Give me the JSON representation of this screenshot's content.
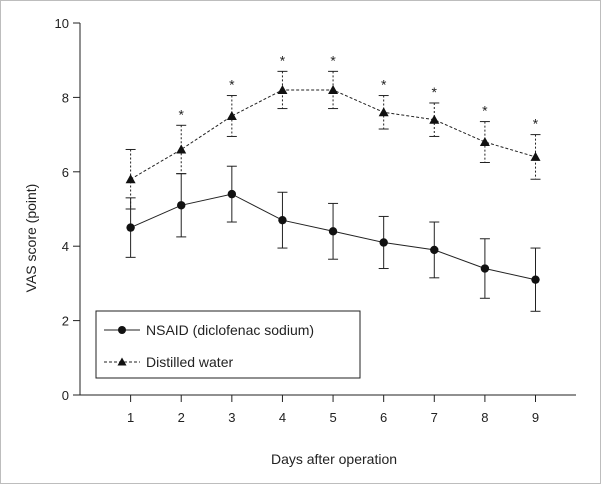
{
  "chart_data": {
    "type": "line",
    "title": "",
    "xlabel": "Days after operation",
    "ylabel": "VAS score (point)",
    "x": [
      1,
      2,
      3,
      4,
      5,
      6,
      7,
      8,
      9
    ],
    "x_tick_labels": [
      "1",
      "2",
      "3",
      "4",
      "5",
      "6",
      "7",
      "8",
      "9"
    ],
    "xlim": [
      0,
      9.8
    ],
    "ylim": [
      0,
      10
    ],
    "y_ticks": [
      0,
      2,
      4,
      6,
      8,
      10
    ],
    "y_tick_labels": [
      "0",
      "2",
      "4",
      "6",
      "8",
      "10"
    ],
    "grid": false,
    "legend_position": "bottom-left",
    "significance_marker": "*",
    "significant_days": [
      2,
      3,
      4,
      5,
      6,
      7,
      8,
      9
    ],
    "series": [
      {
        "name": "NSAID (diclofenac sodium)",
        "marker": "circle",
        "line_style": "solid",
        "values": [
          4.5,
          5.1,
          5.4,
          4.7,
          4.4,
          4.1,
          3.9,
          3.4,
          3.1
        ],
        "errors": [
          0.8,
          0.85,
          0.75,
          0.75,
          0.75,
          0.7,
          0.75,
          0.8,
          0.85
        ]
      },
      {
        "name": "Distilled water",
        "marker": "triangle",
        "line_style": "dashed",
        "values": [
          5.8,
          6.6,
          7.5,
          8.2,
          8.2,
          7.6,
          7.4,
          6.8,
          6.4
        ],
        "errors": [
          0.8,
          0.65,
          0.55,
          0.5,
          0.5,
          0.45,
          0.45,
          0.55,
          0.6
        ]
      }
    ]
  }
}
